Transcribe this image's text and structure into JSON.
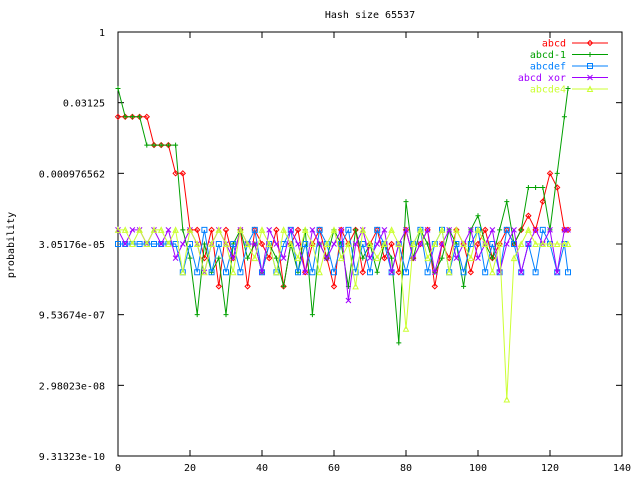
{
  "chart_data": {
    "type": "line",
    "title": "Hash size 65537",
    "xlabel": "",
    "ylabel": "probability",
    "y_scale": "log2",
    "xlim": [
      0,
      140
    ],
    "ylim_exp2": [
      -30,
      0
    ],
    "x_ticks": [
      "0",
      "20",
      "40",
      "60",
      "80",
      "100",
      "120",
      "140"
    ],
    "y_ticks": [
      "1",
      "0.03125",
      "0.000976562",
      "3.05176e-05",
      "9.53674e-07",
      "2.98023e-08",
      "9.31323e-10"
    ],
    "legend_position": "top-right",
    "grid": false,
    "series": [
      {
        "name": "abcd",
        "color": "#ff0000",
        "marker": "diamond",
        "x": [
          0,
          2,
          4,
          6,
          8,
          10,
          12,
          14,
          16,
          18,
          20,
          22,
          24,
          26,
          28,
          30,
          32,
          34,
          36,
          38,
          40,
          42,
          44,
          46,
          48,
          50,
          52,
          54,
          56,
          58,
          60,
          62,
          64,
          66,
          68,
          70,
          72,
          74,
          76,
          78,
          80,
          82,
          84,
          86,
          88,
          90,
          92,
          94,
          96,
          98,
          100,
          102,
          104,
          106,
          108,
          110,
          112,
          114,
          116,
          118,
          120,
          122,
          124,
          125
        ],
        "exp2": [
          -6,
          -6,
          -6,
          -6,
          -6,
          -8,
          -8,
          -8,
          -10,
          -10,
          -14,
          -14,
          -16,
          -14,
          -18,
          -14,
          -16,
          -14,
          -18,
          -14,
          -15,
          -16,
          -14,
          -18,
          -15,
          -14,
          -17,
          -15,
          -14,
          -16,
          -18,
          -14,
          -15,
          -14,
          -17,
          -15,
          -14,
          -16,
          -15,
          -17,
          -14,
          -16,
          -15,
          -14,
          -18,
          -15,
          -16,
          -14,
          -15,
          -17,
          -15,
          -14,
          -16,
          -15,
          -14,
          -15,
          -14,
          -13,
          -14,
          -12,
          -10,
          -11,
          -14,
          -14
        ]
      },
      {
        "name": "abcd-1",
        "color": "#00a000",
        "marker": "plus",
        "x": [
          0,
          2,
          4,
          6,
          8,
          10,
          12,
          14,
          16,
          18,
          20,
          22,
          24,
          26,
          28,
          30,
          32,
          34,
          36,
          38,
          40,
          42,
          44,
          46,
          48,
          50,
          52,
          54,
          56,
          58,
          60,
          62,
          64,
          66,
          68,
          70,
          72,
          74,
          76,
          78,
          80,
          82,
          84,
          86,
          88,
          90,
          92,
          94,
          96,
          98,
          100,
          102,
          104,
          106,
          108,
          110,
          112,
          114,
          116,
          118,
          120,
          122,
          124,
          125
        ],
        "exp2": [
          -4,
          -6,
          -6,
          -6,
          -8,
          -8,
          -8,
          -8,
          -8,
          -14,
          -16,
          -20,
          -15,
          -17,
          -16,
          -20,
          -15,
          -14,
          -16,
          -15,
          -17,
          -15,
          -16,
          -18,
          -15,
          -17,
          -14,
          -20,
          -15,
          -16,
          -14,
          -15,
          -18,
          -14,
          -16,
          -15,
          -17,
          -15,
          -16,
          -22,
          -12,
          -16,
          -14,
          -15,
          -17,
          -16,
          -14,
          -15,
          -18,
          -14,
          -13,
          -15,
          -16,
          -14,
          -12,
          -15,
          -14,
          -11,
          -11,
          -11,
          -14,
          -10,
          -6,
          -4
        ]
      },
      {
        "name": "abcdef",
        "color": "#0080ff",
        "marker": "square",
        "x": [
          0,
          2,
          4,
          6,
          8,
          10,
          12,
          14,
          16,
          18,
          20,
          22,
          24,
          26,
          28,
          30,
          32,
          34,
          36,
          38,
          40,
          42,
          44,
          46,
          48,
          50,
          52,
          54,
          56,
          58,
          60,
          62,
          64,
          66,
          68,
          70,
          72,
          74,
          76,
          78,
          80,
          82,
          84,
          86,
          88,
          90,
          92,
          94,
          96,
          98,
          100,
          102,
          104,
          106,
          108,
          110,
          112,
          114,
          116,
          118,
          120,
          122,
          124,
          125
        ],
        "exp2": [
          -15,
          -15,
          -15,
          -15,
          -15,
          -15,
          -15,
          -15,
          -15,
          -17,
          -15,
          -17,
          -14,
          -17,
          -15,
          -17,
          -15,
          -17,
          -15,
          -14,
          -17,
          -15,
          -17,
          -15,
          -14,
          -17,
          -15,
          -17,
          -14,
          -15,
          -17,
          -15,
          -14,
          -17,
          -15,
          -17,
          -14,
          -15,
          -17,
          -15,
          -17,
          -15,
          -14,
          -17,
          -15,
          -14,
          -17,
          -15,
          -17,
          -15,
          -14,
          -17,
          -15,
          -17,
          -14,
          -15,
          -17,
          -15,
          -17,
          -14,
          -15,
          -17,
          -15,
          -17
        ]
      },
      {
        "name": "abcd xor",
        "color": "#a000ff",
        "marker": "cross",
        "x": [
          0,
          2,
          4,
          6,
          8,
          10,
          12,
          14,
          16,
          18,
          20,
          22,
          24,
          26,
          28,
          30,
          32,
          34,
          36,
          38,
          40,
          42,
          44,
          46,
          48,
          50,
          52,
          54,
          56,
          58,
          60,
          62,
          64,
          66,
          68,
          70,
          72,
          74,
          76,
          78,
          80,
          82,
          84,
          86,
          88,
          90,
          92,
          94,
          96,
          98,
          100,
          102,
          104,
          106,
          108,
          110,
          112,
          114,
          116,
          118,
          120,
          122,
          124,
          125
        ],
        "exp2": [
          -14,
          -15,
          -14,
          -14,
          -15,
          -14,
          -15,
          -14,
          -16,
          -15,
          -14,
          -15,
          -17,
          -15,
          -14,
          -15,
          -16,
          -14,
          -15,
          -15,
          -17,
          -14,
          -15,
          -16,
          -14,
          -15,
          -17,
          -14,
          -15,
          -16,
          -15,
          -14,
          -19,
          -15,
          -14,
          -16,
          -15,
          -14,
          -17,
          -15,
          -14,
          -16,
          -15,
          -14,
          -17,
          -15,
          -14,
          -16,
          -15,
          -14,
          -16,
          -15,
          -14,
          -17,
          -15,
          -14,
          -17,
          -15,
          -14,
          -15,
          -14,
          -17,
          -14,
          -14
        ]
      },
      {
        "name": "abcde4",
        "color": "#ccff33",
        "marker": "triangle",
        "x": [
          0,
          2,
          4,
          6,
          8,
          10,
          12,
          14,
          16,
          18,
          20,
          22,
          24,
          26,
          28,
          30,
          32,
          34,
          36,
          38,
          40,
          42,
          44,
          46,
          48,
          50,
          52,
          54,
          56,
          58,
          60,
          62,
          64,
          66,
          68,
          70,
          72,
          74,
          76,
          78,
          80,
          82,
          84,
          86,
          88,
          90,
          92,
          94,
          96,
          98,
          100,
          102,
          104,
          106,
          108,
          110,
          112,
          114,
          116,
          118,
          120,
          122,
          124,
          125
        ],
        "exp2": [
          -14,
          -14,
          -15,
          -14,
          -15,
          -14,
          -14,
          -15,
          -14,
          -17,
          -14,
          -15,
          -17,
          -15,
          -14,
          -15,
          -17,
          -14,
          -15,
          -16,
          -14,
          -15,
          -17,
          -14,
          -15,
          -16,
          -14,
          -15,
          -17,
          -15,
          -14,
          -16,
          -15,
          -18,
          -14,
          -15,
          -16,
          -15,
          -14,
          -15,
          -21,
          -15,
          -14,
          -16,
          -15,
          -14,
          -17,
          -14,
          -15,
          -16,
          -14,
          -15,
          -17,
          -15,
          -26,
          -16,
          -15,
          -14,
          -15,
          -15,
          -15,
          -15,
          -15,
          -15
        ]
      }
    ]
  }
}
